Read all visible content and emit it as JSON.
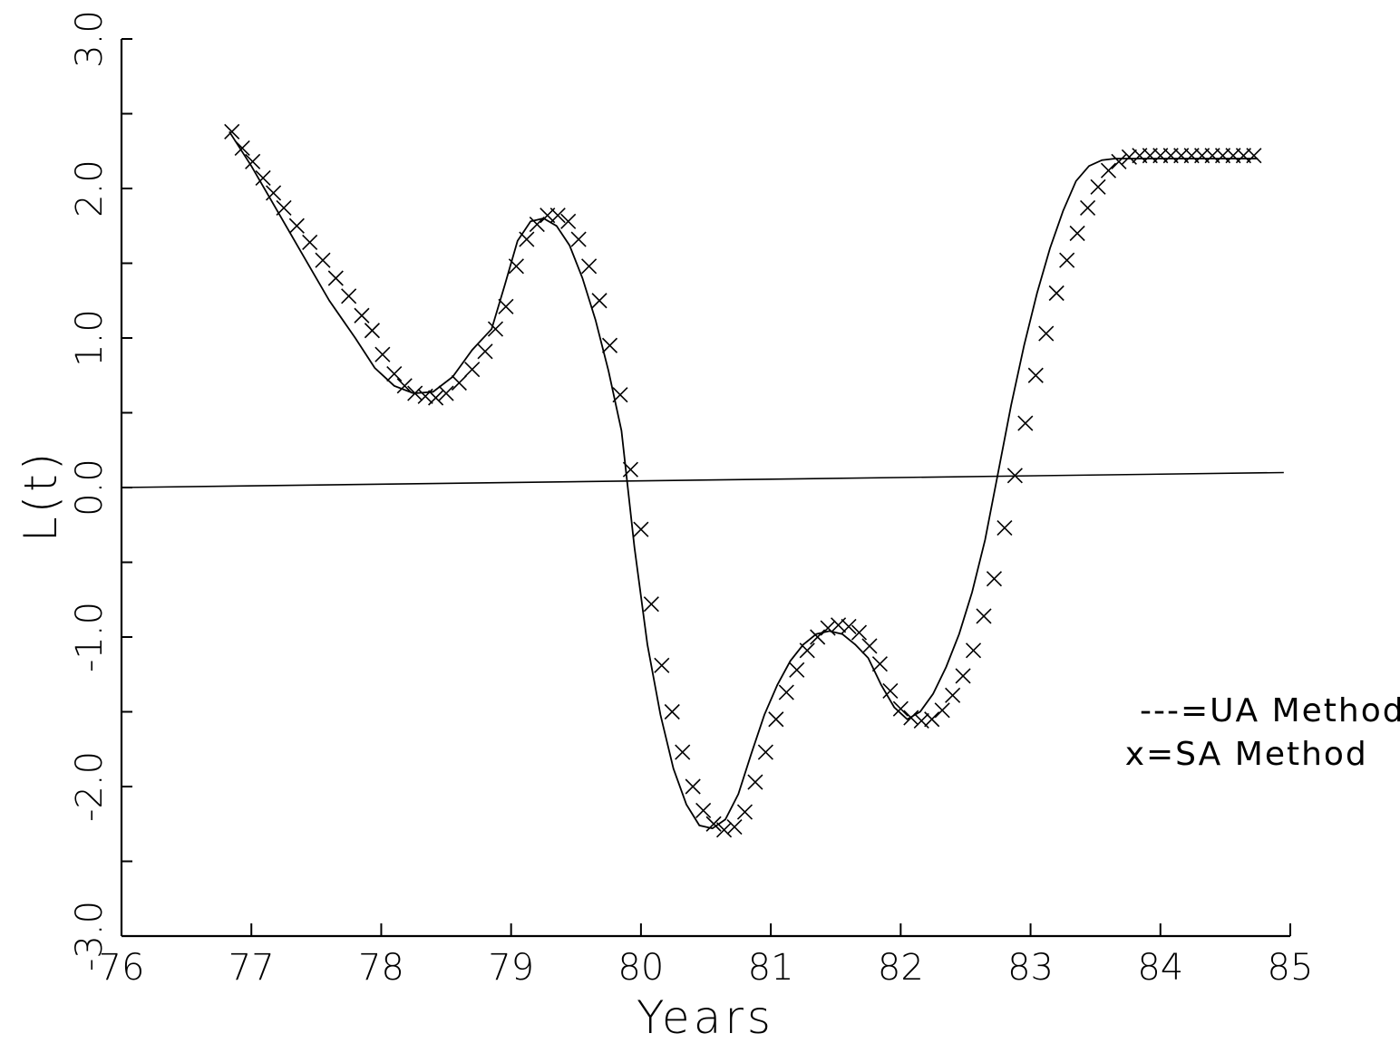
{
  "chart_data": {
    "type": "line",
    "title": "",
    "xlabel": "Years",
    "ylabel": "L(t)",
    "xlim": [
      76,
      85
    ],
    "ylim": [
      -3.0,
      3.0
    ],
    "x_ticks": [
      76,
      77,
      78,
      79,
      80,
      81,
      82,
      83,
      84,
      85
    ],
    "x_tick_labels": [
      "76",
      "77",
      "78",
      "79",
      "80",
      "81",
      "82",
      "83",
      "84",
      "85"
    ],
    "y_ticks": [
      -3.0,
      -2.5,
      -2.0,
      -1.5,
      -1.0,
      -0.5,
      0.0,
      0.5,
      1.0,
      1.5,
      2.0,
      2.5,
      3.0
    ],
    "y_tick_labels": [
      {
        "value": -3.0,
        "label": "-3.0"
      },
      {
        "value": -2.0,
        "label": "-2.0"
      },
      {
        "value": -1.0,
        "label": "-1.0"
      },
      {
        "value": 0.0,
        "label": "0.0"
      },
      {
        "value": 1.0,
        "label": "1.0"
      },
      {
        "value": 2.0,
        "label": "2.0"
      },
      {
        "value": 3.0,
        "label": "3.0"
      }
    ],
    "grid": false,
    "legend": {
      "placement": "right",
      "entries": [
        {
          "symbol": "---",
          "label": "=UA Method"
        },
        {
          "symbol": "x",
          "label": "=SA Method"
        }
      ]
    },
    "reference_line": {
      "x": [
        76,
        84.95
      ],
      "y": [
        0.0,
        0.1
      ]
    },
    "series": [
      {
        "name": "UA Method",
        "style": "line",
        "x": [
          76.83,
          77.0,
          77.2,
          77.4,
          77.6,
          77.8,
          77.95,
          78.1,
          78.25,
          78.4,
          78.55,
          78.7,
          78.85,
          78.95,
          79.05,
          79.15,
          79.25,
          79.35,
          79.45,
          79.55,
          79.65,
          79.75,
          79.85,
          79.95,
          80.05,
          80.15,
          80.25,
          80.35,
          80.45,
          80.55,
          80.65,
          80.75,
          80.85,
          80.95,
          81.05,
          81.15,
          81.25,
          81.35,
          81.45,
          81.55,
          81.65,
          81.75,
          81.85,
          81.95,
          82.05,
          82.15,
          82.25,
          82.35,
          82.45,
          82.55,
          82.65,
          82.75,
          82.85,
          82.95,
          83.05,
          83.15,
          83.25,
          83.35,
          83.45,
          83.55,
          83.65,
          83.75,
          83.85,
          83.95,
          84.2,
          84.5,
          84.75
        ],
        "y": [
          2.38,
          2.15,
          1.85,
          1.55,
          1.25,
          1.0,
          0.8,
          0.68,
          0.63,
          0.64,
          0.74,
          0.92,
          1.06,
          1.35,
          1.65,
          1.78,
          1.8,
          1.75,
          1.62,
          1.4,
          1.12,
          0.78,
          0.38,
          -0.4,
          -1.05,
          -1.52,
          -1.88,
          -2.12,
          -2.26,
          -2.28,
          -2.22,
          -2.05,
          -1.78,
          -1.52,
          -1.32,
          -1.16,
          -1.05,
          -0.98,
          -0.96,
          -0.98,
          -1.05,
          -1.14,
          -1.32,
          -1.47,
          -1.55,
          -1.5,
          -1.38,
          -1.2,
          -0.98,
          -0.7,
          -0.35,
          0.1,
          0.55,
          0.95,
          1.3,
          1.6,
          1.85,
          2.05,
          2.15,
          2.19,
          2.2,
          2.2,
          2.2,
          2.2,
          2.2,
          2.2,
          2.2
        ]
      },
      {
        "name": "SA Method",
        "style": "markers",
        "marker": "x",
        "x": [
          76.85,
          76.93,
          77.01,
          77.09,
          77.17,
          77.25,
          77.35,
          77.45,
          77.55,
          77.65,
          77.75,
          77.85,
          77.93,
          78.01,
          78.1,
          78.18,
          78.26,
          78.34,
          78.42,
          78.5,
          78.6,
          78.7,
          78.8,
          78.88,
          78.96,
          79.04,
          79.12,
          79.2,
          79.28,
          79.36,
          79.44,
          79.52,
          79.6,
          79.68,
          79.76,
          79.84,
          79.92,
          80.0,
          80.08,
          80.16,
          80.24,
          80.32,
          80.4,
          80.48,
          80.56,
          80.64,
          80.72,
          80.8,
          80.88,
          80.96,
          81.04,
          81.12,
          81.2,
          81.28,
          81.36,
          81.44,
          81.52,
          81.6,
          81.68,
          81.76,
          81.84,
          81.92,
          82.0,
          82.08,
          82.16,
          82.24,
          82.32,
          82.4,
          82.48,
          82.56,
          82.64,
          82.72,
          82.8,
          82.88,
          82.96,
          83.04,
          83.12,
          83.2,
          83.28,
          83.36,
          83.44,
          83.52,
          83.6,
          83.68,
          83.76,
          83.84,
          83.92,
          84.0,
          84.08,
          84.16,
          84.24,
          84.32,
          84.4,
          84.48,
          84.56,
          84.64,
          84.72
        ],
        "y": [
          2.38,
          2.27,
          2.18,
          2.07,
          1.97,
          1.87,
          1.75,
          1.64,
          1.52,
          1.4,
          1.28,
          1.15,
          1.05,
          0.89,
          0.76,
          0.68,
          0.63,
          0.61,
          0.6,
          0.63,
          0.7,
          0.79,
          0.91,
          1.06,
          1.21,
          1.48,
          1.66,
          1.76,
          1.82,
          1.82,
          1.78,
          1.66,
          1.48,
          1.25,
          0.95,
          0.62,
          0.12,
          -0.28,
          -0.78,
          -1.19,
          -1.5,
          -1.77,
          -2.0,
          -2.16,
          -2.25,
          -2.29,
          -2.27,
          -2.17,
          -1.97,
          -1.77,
          -1.55,
          -1.37,
          -1.22,
          -1.09,
          -1.0,
          -0.94,
          -0.92,
          -0.93,
          -0.97,
          -1.06,
          -1.18,
          -1.36,
          -1.48,
          -1.54,
          -1.56,
          -1.55,
          -1.49,
          -1.39,
          -1.26,
          -1.09,
          -0.86,
          -0.61,
          -0.27,
          0.08,
          0.43,
          0.75,
          1.03,
          1.3,
          1.52,
          1.7,
          1.87,
          2.01,
          2.12,
          2.18,
          2.21,
          2.22,
          2.22,
          2.22,
          2.22,
          2.22,
          2.22,
          2.22,
          2.22,
          2.22,
          2.22,
          2.22,
          2.22
        ]
      }
    ]
  }
}
